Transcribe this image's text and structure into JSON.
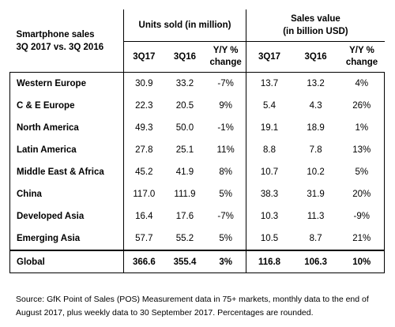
{
  "title_line1": "Smartphone sales",
  "title_line2": "3Q 2017 vs. 3Q 2016",
  "units_header": "Units sold (in million)",
  "sales_header_line1": "Sales value",
  "sales_header_line2": "(in billion USD)",
  "col_3q17": "3Q17",
  "col_3q16": "3Q16",
  "col_yoy_line1": "Y/Y %",
  "col_yoy_line2": "change",
  "rows": [
    {
      "region": "Western Europe",
      "u17": "30.9",
      "u16": "33.2",
      "uc": "-7%",
      "s17": "13.7",
      "s16": "13.2",
      "sc": "4%"
    },
    {
      "region": "C & E Europe",
      "u17": "22.3",
      "u16": "20.5",
      "uc": "9%",
      "s17": "5.4",
      "s16": "4.3",
      "sc": "26%"
    },
    {
      "region": "North America",
      "u17": "49.3",
      "u16": "50.0",
      "uc": "-1%",
      "s17": "19.1",
      "s16": "18.9",
      "sc": "1%"
    },
    {
      "region": "Latin America",
      "u17": "27.8",
      "u16": "25.1",
      "uc": "11%",
      "s17": "8.8",
      "s16": "7.8",
      "sc": "13%"
    },
    {
      "region": "Middle East & Africa",
      "u17": "45.2",
      "u16": "41.9",
      "uc": "8%",
      "s17": "10.7",
      "s16": "10.2",
      "sc": "5%"
    },
    {
      "region": "China",
      "u17": "117.0",
      "u16": "111.9",
      "uc": "5%",
      "s17": "38.3",
      "s16": "31.9",
      "sc": "20%"
    },
    {
      "region": "Developed Asia",
      "u17": "16.4",
      "u16": "17.6",
      "uc": "-7%",
      "s17": "10.3",
      "s16": "11.3",
      "sc": "-9%"
    },
    {
      "region": "Emerging Asia",
      "u17": "57.7",
      "u16": "55.2",
      "uc": "5%",
      "s17": "10.5",
      "s16": "8.7",
      "sc": "21%"
    }
  ],
  "total": {
    "region": "Global",
    "u17": "366.6",
    "u16": "355.4",
    "uc": "3%",
    "s17": "116.8",
    "s16": "106.3",
    "sc": "10%"
  },
  "source_note": "Source: GfK Point of Sales (POS) Measurement data in 75+ markets, monthly data to the end of August 2017, plus weekly data to 30 September 2017. Percentages are rounded."
}
